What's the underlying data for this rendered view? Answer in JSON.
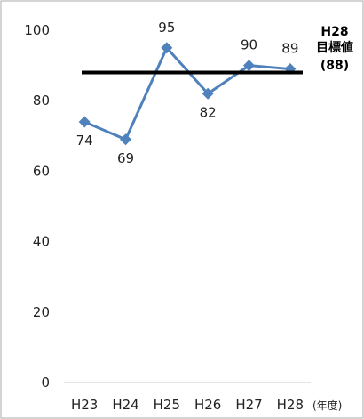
{
  "chart_data": {
    "type": "line",
    "categories": [
      "H23",
      "H24",
      "H25",
      "H26",
      "H27",
      "H28"
    ],
    "series": [
      {
        "values": [
          74,
          69,
          95,
          82,
          90,
          89
        ],
        "color": "#4f81bd",
        "marker": "diamond"
      }
    ],
    "target": {
      "value": 88,
      "label_lines": [
        "H28",
        "目標値",
        "(88)"
      ],
      "color": "#000000"
    },
    "x_unit": "(年度)",
    "ylim": [
      0,
      100
    ],
    "yticks": [
      0,
      20,
      40,
      60,
      80,
      100
    ],
    "grid": false,
    "border_color": "#aaaaaa"
  }
}
